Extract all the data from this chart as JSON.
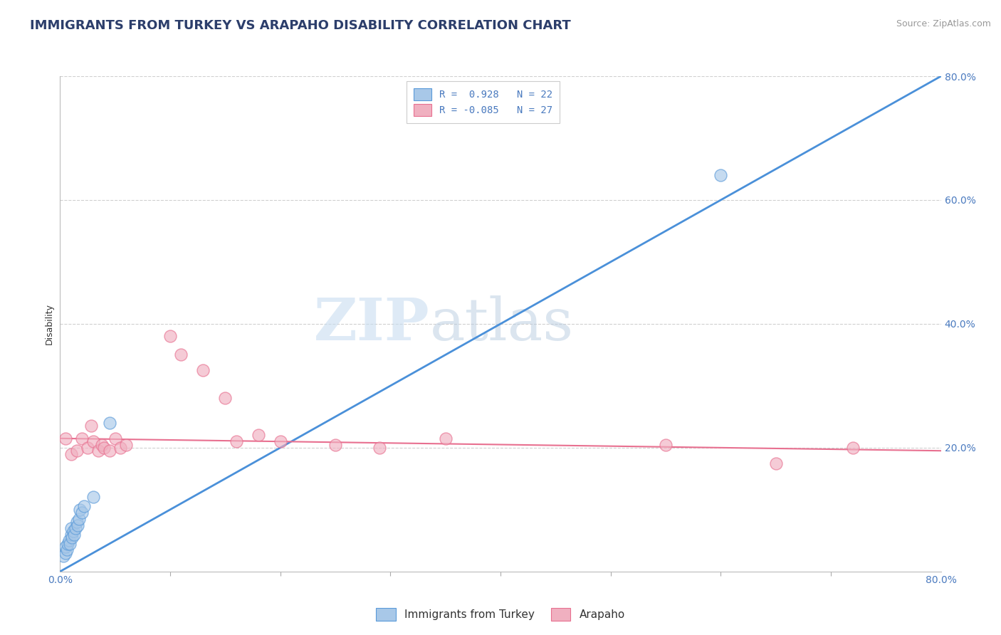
{
  "title": "IMMIGRANTS FROM TURKEY VS ARAPAHO DISABILITY CORRELATION CHART",
  "source": "Source: ZipAtlas.com",
  "ylabel": "Disability",
  "watermark_zip": "ZIP",
  "watermark_atlas": "atlas",
  "xlim": [
    0.0,
    0.8
  ],
  "ylim": [
    0.0,
    0.8
  ],
  "ytick_labels": [
    "20.0%",
    "40.0%",
    "60.0%",
    "80.0%"
  ],
  "ytick_vals": [
    0.2,
    0.4,
    0.6,
    0.8
  ],
  "legend_line1": "R =  0.928   N = 22",
  "legend_line2": "R = -0.085   N = 27",
  "blue_scatter_x": [
    0.003,
    0.005,
    0.005,
    0.006,
    0.007,
    0.008,
    0.009,
    0.01,
    0.01,
    0.011,
    0.012,
    0.013,
    0.014,
    0.015,
    0.016,
    0.017,
    0.018,
    0.02,
    0.022,
    0.03,
    0.045,
    0.6
  ],
  "blue_scatter_y": [
    0.025,
    0.03,
    0.04,
    0.035,
    0.045,
    0.05,
    0.045,
    0.06,
    0.07,
    0.055,
    0.065,
    0.06,
    0.07,
    0.08,
    0.075,
    0.085,
    0.1,
    0.095,
    0.105,
    0.12,
    0.24,
    0.64
  ],
  "pink_scatter_x": [
    0.005,
    0.01,
    0.015,
    0.02,
    0.025,
    0.028,
    0.03,
    0.035,
    0.038,
    0.04,
    0.045,
    0.05,
    0.055,
    0.06,
    0.1,
    0.11,
    0.13,
    0.15,
    0.16,
    0.18,
    0.2,
    0.25,
    0.29,
    0.35,
    0.55,
    0.65,
    0.72
  ],
  "pink_scatter_y": [
    0.215,
    0.19,
    0.195,
    0.215,
    0.2,
    0.235,
    0.21,
    0.195,
    0.205,
    0.2,
    0.195,
    0.215,
    0.2,
    0.205,
    0.38,
    0.35,
    0.325,
    0.28,
    0.21,
    0.22,
    0.21,
    0.205,
    0.2,
    0.215,
    0.205,
    0.175,
    0.2
  ],
  "blue_line_x": [
    0.0,
    0.8
  ],
  "blue_line_y": [
    0.0,
    0.8
  ],
  "pink_line_x": [
    0.0,
    0.8
  ],
  "pink_line_y": [
    0.215,
    0.195
  ],
  "blue_color": "#4a90d9",
  "pink_color": "#e87090",
  "scatter_blue_face": "#a8c8e8",
  "scatter_blue_edge": "#5a9ad9",
  "scatter_pink_face": "#f0b0c0",
  "scatter_pink_edge": "#e87090",
  "grid_color": "#d0d0d0",
  "title_color": "#2c3e6b",
  "axis_tick_color": "#4a7abf",
  "background_color": "#ffffff",
  "title_fontsize": 13,
  "axis_label_fontsize": 9,
  "tick_fontsize": 10,
  "legend_fontsize": 10,
  "source_fontsize": 9,
  "scatter_size": 150,
  "scatter_alpha": 0.65,
  "scatter_linewidth": 1.0
}
